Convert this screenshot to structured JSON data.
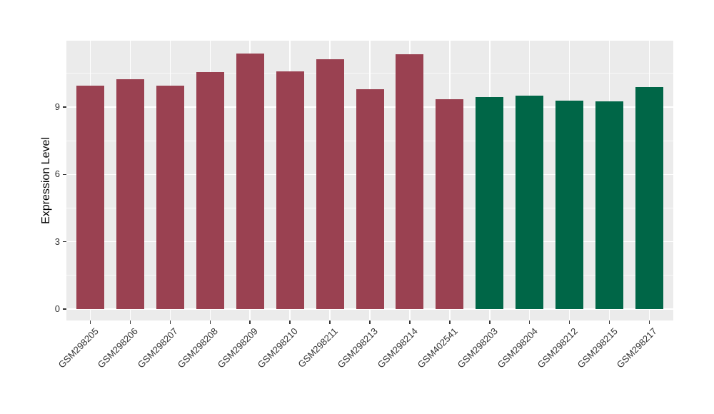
{
  "figure": {
    "background_color": "#FFFFFF",
    "panel_background_color": "#EBEBEB",
    "gridline_color": "#FFFFFF",
    "axis_text_color": "#333333",
    "axis_title_color": "#000000",
    "tick_mark_color": "#333333"
  },
  "chart_data": {
    "type": "bar",
    "title": "",
    "xlabel": "",
    "ylabel": "Expression Level",
    "categories": [
      "GSM298205",
      "GSM298206",
      "GSM298207",
      "GSM298208",
      "GSM298209",
      "GSM298210",
      "GSM298211",
      "GSM298213",
      "GSM298214",
      "GSM402541",
      "GSM298203",
      "GSM298204",
      "GSM298212",
      "GSM298215",
      "GSM298217"
    ],
    "values": [
      9.95,
      10.25,
      9.95,
      10.55,
      11.4,
      10.6,
      11.15,
      9.8,
      11.35,
      9.35,
      9.45,
      9.5,
      9.3,
      9.25,
      9.9
    ],
    "bar_colors": [
      "#9A4151",
      "#9A4151",
      "#9A4151",
      "#9A4151",
      "#9A4151",
      "#9A4151",
      "#9A4151",
      "#9A4151",
      "#9A4151",
      "#9A4151",
      "#006647",
      "#006647",
      "#006647",
      "#006647",
      "#006647"
    ],
    "groups": [
      {
        "name": "group-maroon",
        "color": "#9A4151",
        "categories": [
          "GSM298205",
          "GSM298206",
          "GSM298207",
          "GSM298208",
          "GSM298209",
          "GSM298210",
          "GSM298211",
          "GSM298213",
          "GSM298214",
          "GSM402541"
        ]
      },
      {
        "name": "group-green",
        "color": "#006647",
        "categories": [
          "GSM298203",
          "GSM298204",
          "GSM298212",
          "GSM298215",
          "GSM298217"
        ]
      }
    ],
    "yticks": [
      0,
      3,
      6,
      9
    ],
    "y_major_gridlines": [
      0,
      3,
      6,
      9
    ],
    "y_minor_gridlines": [
      1.5,
      4.5,
      7.5,
      10.5
    ],
    "ylim": [
      0,
      12
    ],
    "grid": "major-and-minor",
    "legend": false,
    "x_tick_label_rotation_deg": 45
  }
}
